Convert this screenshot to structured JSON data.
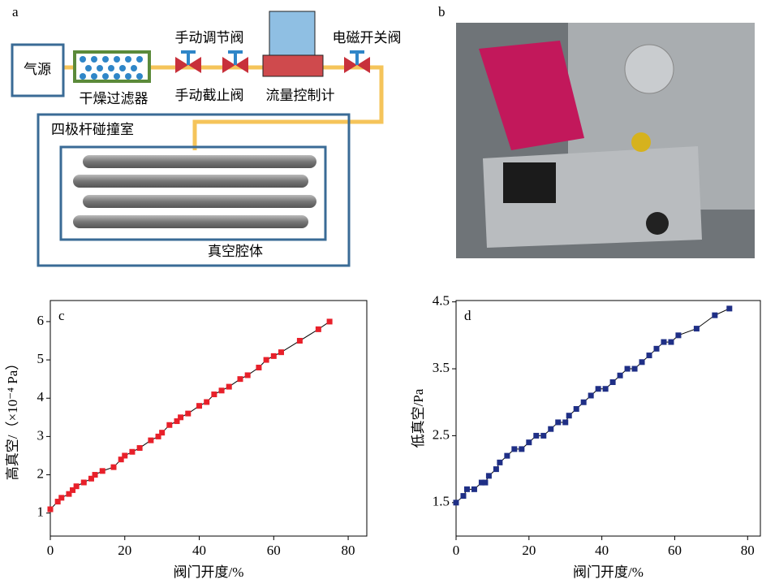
{
  "diagram": {
    "panel": "a",
    "source": "气源",
    "filter": "干燥过滤器",
    "regulating_valve": "手动调节阀",
    "shutoff_valve": "手动截止阀",
    "flow_controller": "流量控制计",
    "solenoid_valve": "电磁开关阀",
    "collision_cell": "四极杆碰撞室",
    "vacuum_chamber": "真空腔体"
  },
  "photo": {
    "panel": "b"
  },
  "chart_data": [
    {
      "type": "line",
      "label": "c",
      "x": [
        0,
        2,
        3,
        5,
        6,
        7,
        9,
        11,
        12,
        14,
        17,
        19,
        20,
        22,
        24,
        27,
        29,
        30,
        32,
        34,
        35,
        37,
        40,
        42,
        44,
        46,
        48,
        51,
        53,
        56,
        58,
        60,
        62,
        67,
        72,
        75
      ],
      "values": [
        1.1,
        1.3,
        1.4,
        1.5,
        1.6,
        1.7,
        1.8,
        1.9,
        2.0,
        2.1,
        2.2,
        2.4,
        2.5,
        2.6,
        2.7,
        2.9,
        3.0,
        3.1,
        3.3,
        3.4,
        3.5,
        3.6,
        3.8,
        3.9,
        4.1,
        4.2,
        4.3,
        4.5,
        4.6,
        4.8,
        5.0,
        5.1,
        5.2,
        5.5,
        5.8,
        6.0
      ],
      "color": "#e8202a",
      "line_color": "#000000",
      "xlim": [
        0,
        85
      ],
      "ylim": [
        0.4,
        6.55
      ],
      "xticks": [
        0,
        20,
        40,
        60,
        80
      ],
      "yticks": [
        1,
        2,
        3,
        4,
        5,
        6
      ],
      "xlabel": "阀门开度/%",
      "ylabel": "高真空/（×10⁻⁴ Pa）"
    },
    {
      "type": "line",
      "label": "d",
      "x": [
        0,
        2,
        3,
        5,
        7,
        8,
        9,
        11,
        12,
        14,
        16,
        18,
        20,
        22,
        24,
        26,
        28,
        30,
        31,
        33,
        35,
        37,
        39,
        41,
        43,
        45,
        47,
        49,
        51,
        53,
        55,
        57,
        59,
        61,
        66,
        71,
        75
      ],
      "values": [
        1.5,
        1.6,
        1.7,
        1.7,
        1.8,
        1.8,
        1.9,
        2.0,
        2.1,
        2.2,
        2.3,
        2.3,
        2.4,
        2.5,
        2.5,
        2.6,
        2.7,
        2.7,
        2.8,
        2.9,
        3.0,
        3.1,
        3.2,
        3.2,
        3.3,
        3.4,
        3.5,
        3.5,
        3.6,
        3.7,
        3.8,
        3.9,
        3.9,
        4.0,
        4.1,
        4.3,
        4.4
      ],
      "color": "#1f2f86",
      "line_color": "#000000",
      "xlim": [
        0,
        83.5
      ],
      "ylim": [
        1.0,
        4.52
      ],
      "xticks": [
        0,
        20,
        40,
        60,
        80
      ],
      "yticks": [
        1.5,
        2.5,
        3.5,
        4.5
      ],
      "xlabel": "阀门开度/%",
      "ylabel": "低真空/Pa"
    }
  ]
}
